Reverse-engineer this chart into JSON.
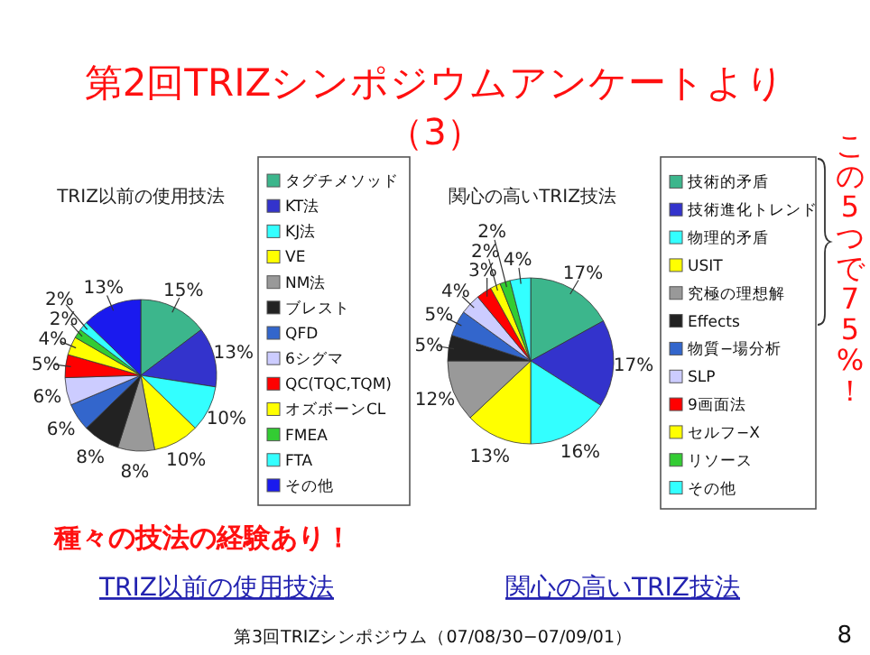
{
  "chart_data": [
    {
      "type": "pie",
      "title": "TRIZ以前の使用技法",
      "legend": "right",
      "value_labels": [
        "15%",
        "13%",
        "10%",
        "10%",
        "8%",
        "8%",
        "6%",
        "6%",
        "5%",
        "4%",
        "2%",
        "2%",
        "13%"
      ],
      "categories": [
        "タグチメソッド",
        "KT法",
        "KJ法",
        "VE",
        "NM法",
        "ブレスト",
        "QFD",
        "6シグマ",
        "QC(TQC,TQM)",
        "オズボーンCL",
        "FMEA",
        "FTA",
        "その他"
      ],
      "values": [
        15,
        13,
        10,
        10,
        8,
        8,
        6,
        6,
        5,
        4,
        2,
        2,
        13
      ],
      "colors": [
        "#3cb68c",
        "#3333cc",
        "#33ffff",
        "#ffff00",
        "#999999",
        "#222222",
        "#3366cc",
        "#ccccff",
        "#ff0000",
        "#ffff00",
        "#33cc33",
        "#33ffff",
        "#1a1aee"
      ],
      "annotations": [
        "第2回TRIZシンポジウムアンケートより",
        "（3）",
        "種々の技法の経験あり！",
        "TRIZ以前の使用技法",
        "第3回TRIZシンポジウム（07/08/30−07/09/01）",
        "8"
      ]
    },
    {
      "type": "pie",
      "title": "関心の高いTRIZ技法",
      "legend": "right",
      "value_labels": [
        "17%",
        "17%",
        "16%",
        "13%",
        "12%",
        "5%",
        "5%",
        "4%",
        "3%",
        "2%",
        "2%",
        "4%"
      ],
      "categories": [
        "技術的矛盾",
        "技術進化トレンド",
        "物理的矛盾",
        "USIT",
        "究極の理想解",
        "Effects",
        "物質−場分析",
        "SLP",
        "9画面法",
        "セルフ−X",
        "リソース",
        "その他"
      ],
      "values": [
        17,
        17,
        16,
        13,
        12,
        5,
        5,
        4,
        3,
        2,
        2,
        4
      ],
      "colors": [
        "#3cb68c",
        "#3333cc",
        "#33ffff",
        "#ffff00",
        "#999999",
        "#222222",
        "#3366cc",
        "#ccccff",
        "#ff0000",
        "#ffff00",
        "#33cc33",
        "#33ffff"
      ],
      "annotations": [
        "この5つで75%！",
        "関心の高いTRIZ技法"
      ]
    }
  ]
}
